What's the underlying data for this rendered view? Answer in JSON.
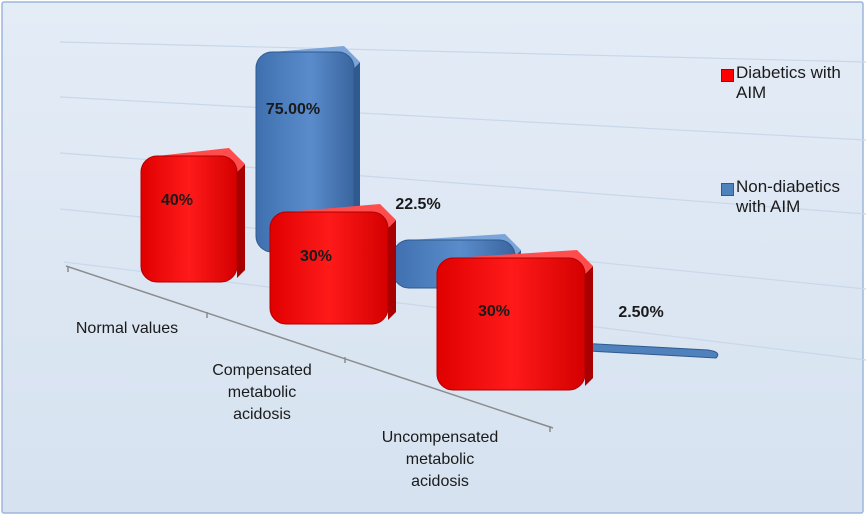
{
  "chart_data": {
    "type": "bar",
    "categories": [
      "Normal values",
      "Compensated\nmetabolic\nacidosis",
      "Uncompensated\nmetabolic\nacidosis"
    ],
    "series": [
      {
        "name": "Diabetics with AIM",
        "values": [
          40,
          30,
          30
        ],
        "labels": [
          "40%",
          "30%",
          "30%"
        ],
        "color": "#ff0000"
      },
      {
        "name": "Non-diabetics with AIM",
        "values": [
          75,
          22.5,
          2.5
        ],
        "labels": [
          "75.00%",
          "22.5%",
          "2.50%"
        ],
        "color": "#4f81bd"
      }
    ],
    "ylim": [
      0,
      80
    ],
    "grid": true,
    "legend_position": "right",
    "style": "3d"
  },
  "colors": {
    "background": "#dce6f2",
    "frame": "#8faadc",
    "gridline": "#c6d4e8",
    "axis": "#7f7f7f"
  }
}
